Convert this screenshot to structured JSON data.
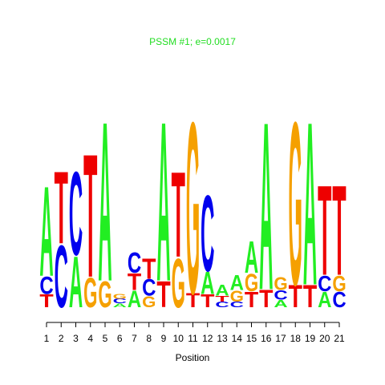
{
  "chart_data": {
    "type": "logo",
    "title": "PSSM #1; e=0.0017",
    "title_color": "#22dd22",
    "xlabel": "Position",
    "categories": [
      "1",
      "2",
      "3",
      "4",
      "5",
      "6",
      "7",
      "8",
      "9",
      "10",
      "11",
      "12",
      "13",
      "14",
      "15",
      "16",
      "17",
      "18",
      "19",
      "20",
      "21"
    ],
    "series": [
      {
        "name": "A",
        "color": "#22ee22",
        "values": [
          0.97,
          0,
          0.55,
          0,
          1.72,
          0.04,
          0.18,
          0,
          1.72,
          0,
          0,
          0.24,
          0.12,
          0.16,
          0.34,
          1.81,
          0.08,
          0,
          1.76,
          0.17,
          0
        ]
      },
      {
        "name": "C",
        "color": "#0000ee",
        "values": [
          0.19,
          0.67,
          0.9,
          0,
          0,
          0.05,
          0.22,
          0.18,
          0,
          0,
          0,
          0.82,
          0.06,
          0.06,
          0,
          0,
          0.1,
          0,
          0,
          0.17,
          0.17
        ]
      },
      {
        "name": "G",
        "color": "#f5a000",
        "values": [
          0,
          0,
          0,
          0.32,
          0.28,
          0.05,
          0,
          0.12,
          0,
          0.53,
          1.85,
          0,
          0,
          0.12,
          0.19,
          0,
          0.14,
          1.76,
          0,
          0,
          0.17
        ]
      },
      {
        "name": "T",
        "color": "#ee0000",
        "values": [
          0.14,
          0.78,
          0,
          1.33,
          0,
          0,
          0.18,
          0.22,
          0.28,
          0.92,
          0.15,
          0.14,
          0.06,
          0,
          0.17,
          0.19,
          0,
          0.24,
          0.24,
          0.97,
          0.97
        ]
      }
    ]
  }
}
